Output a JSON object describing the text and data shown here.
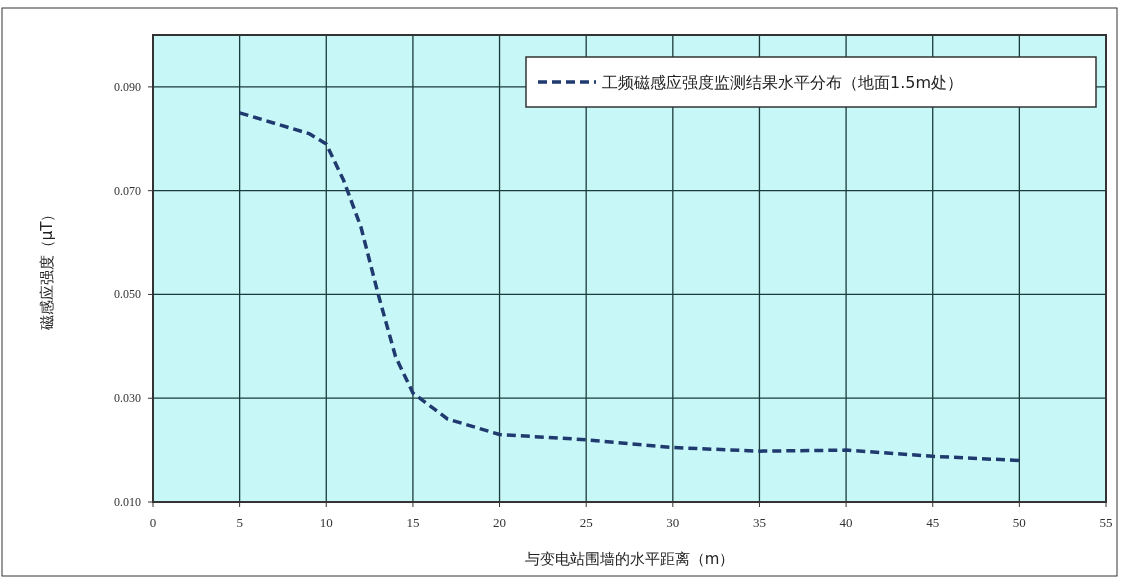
{
  "chart_data": {
    "type": "line",
    "xlabel": "与变电站围墙的水平距离（m）",
    "ylabel": "磁感应强度（μT）",
    "x": [
      5,
      7,
      9,
      10,
      11,
      12,
      13,
      14,
      15,
      17,
      20,
      25,
      30,
      35,
      40,
      45,
      50
    ],
    "series": [
      {
        "name": "工频磁感应强度监测结果水平分布（地面1.5m处）",
        "color": "#1f3a6e",
        "values": [
          0.085,
          0.083,
          0.081,
          0.079,
          0.072,
          0.063,
          0.05,
          0.038,
          0.031,
          0.026,
          0.023,
          0.022,
          0.0205,
          0.0198,
          0.02,
          0.0188,
          0.018
        ]
      }
    ],
    "xlim": [
      0,
      55
    ],
    "xticks": [
      0,
      5,
      10,
      15,
      20,
      25,
      30,
      35,
      40,
      45,
      50,
      55
    ],
    "ylim": [
      0.01,
      0.1
    ],
    "yticks": [
      {
        "value": 0.01,
        "label": "0.010"
      },
      {
        "value": 0.03,
        "label": "0.030"
      },
      {
        "value": 0.05,
        "label": "0.050"
      },
      {
        "value": 0.07,
        "label": "0.070"
      },
      {
        "value": 0.09,
        "label": "0.090"
      }
    ],
    "grid": true,
    "legend": "top right",
    "line_style": "dashed",
    "marker": "none"
  }
}
